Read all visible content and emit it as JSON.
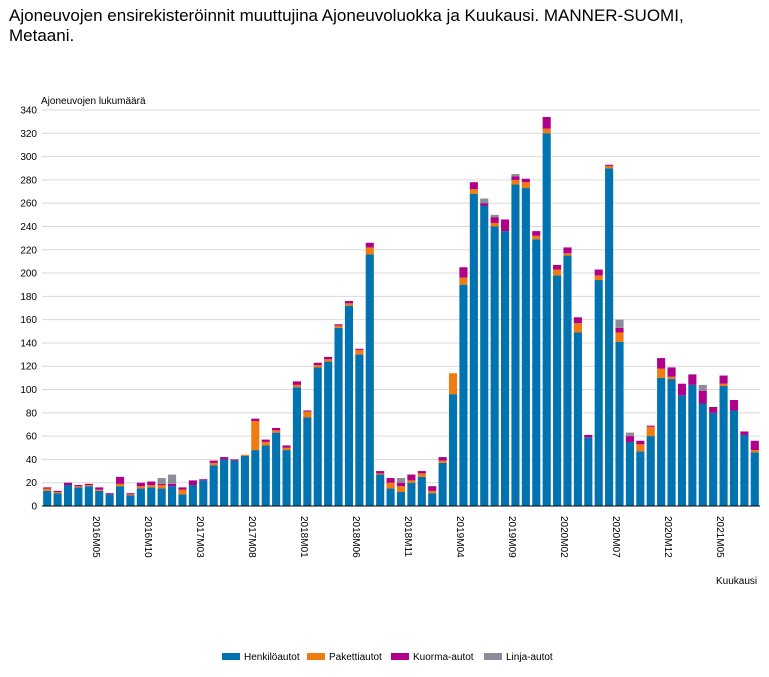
{
  "title": "Ajoneuvojen ensirekisteröinnit muuttujina Ajoneuvoluokka ja Kuukausi. MANNER-SUOMI, Metaani.",
  "chart_data": {
    "type": "bar",
    "stacked": true,
    "ylabel": "Ajoneuvojen lukumäärä",
    "xlabel": "Kuukausi",
    "ylim": [
      0,
      340
    ],
    "yticks": [
      0,
      20,
      40,
      60,
      80,
      100,
      120,
      140,
      160,
      180,
      200,
      220,
      240,
      260,
      280,
      300,
      320,
      340
    ],
    "grid": true,
    "legend_position": "bottom",
    "categories": [
      "2016M01",
      "2016M02",
      "2016M03",
      "2016M04",
      "2016M05",
      "2016M06",
      "2016M07",
      "2016M08",
      "2016M09",
      "2016M10",
      "2016M11",
      "2016M12",
      "2017M01",
      "2017M02",
      "2017M03",
      "2017M04",
      "2017M05",
      "2017M06",
      "2017M07",
      "2017M08",
      "2017M09",
      "2017M10",
      "2017M11",
      "2017M12",
      "2018M01",
      "2018M02",
      "2018M03",
      "2018M04",
      "2018M05",
      "2018M06",
      "2018M07",
      "2018M08",
      "2018M09",
      "2018M10",
      "2018M11",
      "2018M12",
      "2019M01",
      "2019M02",
      "2019M03",
      "2019M04",
      "2019M05",
      "2019M06",
      "2019M07",
      "2019M08",
      "2019M09",
      "2019M10",
      "2019M11",
      "2019M12",
      "2020M01",
      "2020M02",
      "2020M03",
      "2020M04",
      "2020M05",
      "2020M06",
      "2020M07",
      "2020M08",
      "2020M09",
      "2020M10",
      "2020M11",
      "2020M12",
      "2021M01",
      "2021M02",
      "2021M03",
      "2021M04",
      "2021M05",
      "2021M06",
      "2021M07",
      "2021M08",
      "2021M09"
    ],
    "xtick_labels": [
      "2016M05",
      "2016M10",
      "2017M03",
      "2017M08",
      "2018M01",
      "2018M06",
      "2018M11",
      "2019M04",
      "2019M09",
      "2020M02",
      "2020M07",
      "2020M12",
      "2021M05"
    ],
    "series": [
      {
        "name": "Henkilöautot",
        "color": "#0073b0",
        "values": [
          13,
          11,
          18,
          16,
          17,
          13,
          10,
          17,
          9,
          15,
          16,
          15,
          17,
          10,
          18,
          22,
          35,
          40,
          39,
          43,
          48,
          52,
          63,
          48,
          102,
          76,
          119,
          124,
          153,
          172,
          130,
          216,
          27,
          15,
          12,
          20,
          25,
          11,
          37,
          96,
          190,
          268,
          258,
          240,
          236,
          276,
          273,
          229,
          320,
          198,
          215,
          149,
          59,
          194,
          290,
          141,
          55,
          47,
          60,
          110,
          109,
          95,
          104,
          88,
          80,
          103,
          82,
          61,
          46
        ]
      },
      {
        "name": "Pakettiautot",
        "color": "#f07b0f",
        "values": [
          2,
          1,
          0,
          1,
          1,
          1,
          0,
          2,
          1,
          2,
          2,
          3,
          0,
          4,
          0,
          0,
          2,
          0,
          0,
          1,
          25,
          3,
          2,
          2,
          2,
          5,
          2,
          2,
          2,
          2,
          4,
          6,
          1,
          5,
          5,
          2,
          3,
          2,
          2,
          18,
          6,
          4,
          0,
          3,
          0,
          4,
          5,
          3,
          4,
          5,
          2,
          8,
          0,
          4,
          2,
          8,
          0,
          6,
          8,
          8,
          2,
          0,
          0,
          0,
          0,
          2,
          0,
          0,
          2
        ]
      },
      {
        "name": "Kuorma-autot",
        "color": "#b0008b",
        "values": [
          1,
          1,
          2,
          1,
          1,
          2,
          1,
          6,
          1,
          3,
          3,
          1,
          2,
          2,
          4,
          1,
          2,
          2,
          1,
          0,
          2,
          2,
          2,
          2,
          3,
          1,
          2,
          2,
          1,
          2,
          1,
          4,
          2,
          4,
          3,
          5,
          2,
          4,
          3,
          0,
          9,
          6,
          2,
          5,
          10,
          3,
          3,
          4,
          10,
          4,
          5,
          5,
          2,
          5,
          1,
          4,
          5,
          3,
          1,
          9,
          8,
          10,
          9,
          11,
          5,
          7,
          9,
          3,
          8
        ]
      },
      {
        "name": "Linja-autot",
        "color": "#8c8c99",
        "values": [
          0,
          0,
          0,
          0,
          0,
          0,
          0,
          0,
          0,
          0,
          0,
          5,
          8,
          0,
          0,
          0,
          0,
          0,
          0,
          0,
          0,
          0,
          0,
          0,
          0,
          0,
          0,
          0,
          0,
          0,
          0,
          0,
          0,
          0,
          4,
          0,
          0,
          0,
          0,
          0,
          0,
          0,
          4,
          2,
          0,
          2,
          0,
          0,
          0,
          0,
          0,
          0,
          0,
          0,
          0,
          7,
          3,
          0,
          0,
          0,
          0,
          0,
          0,
          5,
          0,
          0,
          0,
          0,
          0
        ]
      }
    ]
  }
}
